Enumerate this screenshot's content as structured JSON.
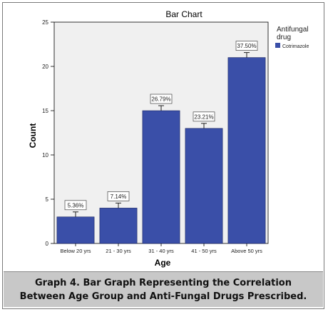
{
  "chart_data": {
    "type": "bar",
    "title": "Bar Chart",
    "xlabel": "Age",
    "ylabel": "Count",
    "categories": [
      "Below 20 yrs",
      "21 - 30 yrs",
      "31 - 40 yrs",
      "41 - 50 yrs",
      "Above 50 yrs"
    ],
    "values": [
      3,
      4,
      15,
      13,
      21
    ],
    "data_labels": [
      "5.36%",
      "7.14%",
      "26.79%",
      "23.21%",
      "37.50%"
    ],
    "error_bars": true,
    "ylim": [
      0,
      25
    ],
    "yticks": [
      0,
      5,
      10,
      15,
      20,
      25
    ],
    "grid": false,
    "legend": {
      "title": "Antifungal drug",
      "placement": "top-right",
      "items": [
        {
          "name": "Cotrimazole",
          "color": "#3a4fa8"
        }
      ]
    },
    "bar_color": "#3a4fa8",
    "plot_background": "#f0f0f0"
  },
  "caption": "Graph 4. Bar Graph Representing the Correlation Between Age Group and Anti-Fungal Drugs Prescribed."
}
